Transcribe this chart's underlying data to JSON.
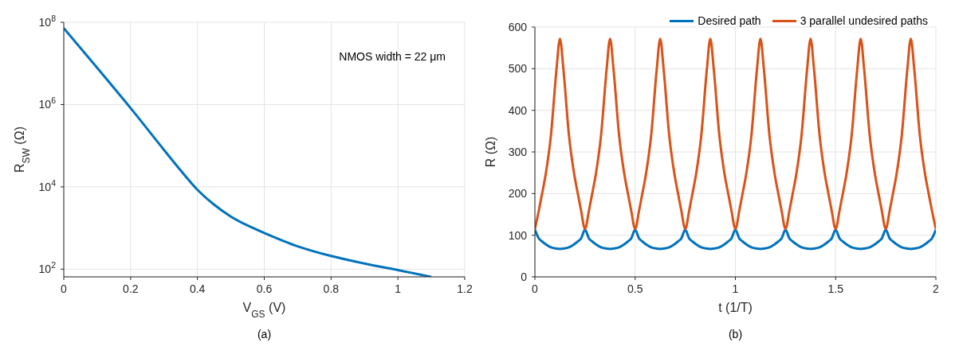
{
  "chart_data": [
    {
      "type": "line",
      "xlabel": "V$_{GS}$ (V)",
      "ylabel": "R$_{SW}$ (Ω)",
      "log": "y",
      "grid": true,
      "x": [
        0,
        0.1,
        0.2,
        0.3,
        0.35,
        0.4,
        0.45,
        0.5,
        0.55,
        0.6,
        0.7,
        0.8,
        0.9,
        1.0,
        1.1
      ],
      "values": [
        72000000,
        7800000,
        820000,
        79000,
        25000,
        8500,
        3700,
        1900,
        1150,
        760,
        360,
        209,
        137,
        95,
        65
      ],
      "color": "#0072bd",
      "xlim": [
        0,
        1.2
      ],
      "xticks": [
        0,
        0.2,
        0.4,
        0.6,
        0.8,
        1,
        1.2
      ],
      "ylim": [
        65,
        100000000
      ],
      "yticks": [
        {
          "value": 100,
          "label": "10$^{2}$"
        },
        {
          "value": 10000,
          "label": "10$^{4}$"
        },
        {
          "value": 1000000,
          "label": "10$^{6}$"
        },
        {
          "value": 100000000,
          "label": "10$^{8}$"
        }
      ],
      "annotations": [
        "NMOS width = 22 μm",
        "(a)"
      ]
    },
    {
      "type": "line",
      "xlabel": "t (1/T)",
      "ylabel": "R (Ω)",
      "grid": true,
      "legend": "top right",
      "x": [
        0,
        0.02,
        0.036,
        0.055,
        0.08,
        0.108,
        0.125,
        0.142,
        0.17,
        0.195,
        0.214,
        0.23,
        0.25,
        0.27,
        0.286,
        0.305,
        0.33,
        0.358,
        0.375,
        0.392,
        0.42,
        0.445,
        0.464,
        0.48,
        0.5,
        0.52,
        0.536,
        0.555,
        0.58,
        0.608,
        0.625,
        0.642,
        0.67,
        0.695,
        0.714,
        0.73,
        0.75,
        0.77,
        0.786,
        0.805,
        0.83,
        0.858,
        0.875,
        0.892,
        0.92,
        0.945,
        0.964,
        0.98,
        1,
        1.02,
        1.036,
        1.055,
        1.08,
        1.108,
        1.125,
        1.142,
        1.17,
        1.195,
        1.214,
        1.23,
        1.25,
        1.27,
        1.286,
        1.305,
        1.33,
        1.358,
        1.375,
        1.392,
        1.42,
        1.445,
        1.464,
        1.48,
        1.5,
        1.52,
        1.536,
        1.555,
        1.58,
        1.608,
        1.625,
        1.642,
        1.67,
        1.695,
        1.714,
        1.73,
        1.75,
        1.77,
        1.786,
        1.805,
        1.83,
        1.858,
        1.875,
        1.892,
        1.92,
        1.945,
        1.964,
        1.98,
        2
      ],
      "series": [
        {
          "name": "Desired path",
          "color": "#0072bd",
          "values": [
            113,
            92,
            85,
            78,
            71,
            68,
            67,
            68,
            71,
            78,
            85,
            92,
            113,
            92,
            85,
            78,
            71,
            68,
            67,
            68,
            71,
            78,
            85,
            92,
            113,
            92,
            85,
            78,
            71,
            68,
            67,
            68,
            71,
            78,
            85,
            92,
            113,
            92,
            85,
            78,
            71,
            68,
            67,
            68,
            71,
            78,
            85,
            92,
            113,
            92,
            85,
            78,
            71,
            68,
            67,
            68,
            71,
            78,
            85,
            92,
            113,
            92,
            85,
            78,
            71,
            68,
            67,
            68,
            71,
            78,
            85,
            92,
            113,
            92,
            85,
            78,
            71,
            68,
            67,
            68,
            71,
            78,
            85,
            92,
            113,
            92,
            85,
            78,
            71,
            68,
            67,
            68,
            71,
            78,
            85,
            92,
            113
          ]
        },
        {
          "name": "3 parallel undesired paths",
          "color": "#d95319",
          "values": [
            115,
            160,
            200,
            250,
            340,
            500,
            572,
            500,
            340,
            250,
            200,
            160,
            115,
            160,
            200,
            250,
            340,
            500,
            572,
            500,
            340,
            250,
            200,
            160,
            115,
            160,
            200,
            250,
            340,
            500,
            572,
            500,
            340,
            250,
            200,
            160,
            115,
            160,
            200,
            250,
            340,
            500,
            572,
            500,
            340,
            250,
            200,
            160,
            115,
            160,
            200,
            250,
            340,
            500,
            572,
            500,
            340,
            250,
            200,
            160,
            115,
            160,
            200,
            250,
            340,
            500,
            572,
            500,
            340,
            250,
            200,
            160,
            115,
            160,
            200,
            250,
            340,
            500,
            572,
            500,
            340,
            250,
            200,
            160,
            115,
            160,
            200,
            250,
            340,
            500,
            572,
            500,
            340,
            250,
            200,
            160,
            115
          ]
        }
      ],
      "xlim": [
        0,
        2
      ],
      "xticks": [
        0,
        0.5,
        1,
        1.5,
        2
      ],
      "ylim": [
        0,
        600
      ],
      "yticks": [
        0,
        100,
        200,
        300,
        400,
        500,
        600
      ],
      "annotations": [
        "(b)"
      ]
    }
  ]
}
